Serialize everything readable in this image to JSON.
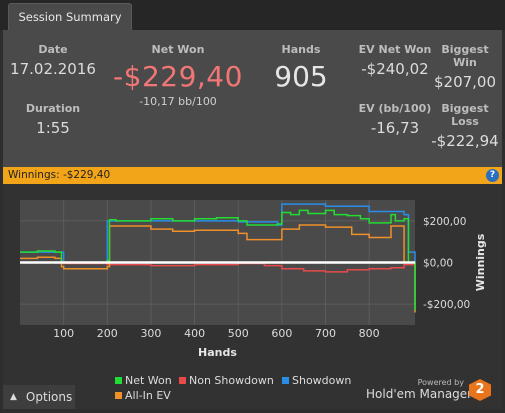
{
  "tab": {
    "label": "Session Summary"
  },
  "summary": {
    "date": {
      "label": "Date",
      "value": "17.02.2016"
    },
    "duration": {
      "label": "Duration",
      "value": "1:55"
    },
    "net_won": {
      "label": "Net Won",
      "value": "-$229,40",
      "sub": "-10,17 bb/100"
    },
    "hands": {
      "label": "Hands",
      "value": "905"
    },
    "ev_net_won": {
      "label": "EV Net Won",
      "value": "-$240,02"
    },
    "ev_bb": {
      "label": "EV (bb/100)",
      "value": "-16,73"
    },
    "biggest_win": {
      "label": "Biggest Win",
      "value": "$207,00"
    },
    "biggest_loss": {
      "label": "Biggest Loss",
      "value": "-$222,94"
    }
  },
  "winnings_bar": {
    "label": "Winnings: -$229,40",
    "help": "?"
  },
  "colors": {
    "net_won": "#22dd33",
    "non_showdown": "#e84a4a",
    "showdown": "#2a8de8",
    "all_in_ev": "#f0902a",
    "zero_line": "#ffffff",
    "accent": "#f3a51a"
  },
  "chart_data": {
    "type": "line",
    "xlabel": "Hands",
    "ylabel": "Winnings",
    "xlim": [
      0,
      905
    ],
    "ylim": [
      -300,
      300
    ],
    "x_ticks": [
      "100",
      "200",
      "300",
      "400",
      "500",
      "600",
      "700",
      "800"
    ],
    "y_ticks": [
      "$200,00",
      "$0,00",
      "-$200,00"
    ],
    "series": [
      {
        "name": "Net Won",
        "color": "#22dd33",
        "x": [
          0,
          40,
          80,
          95,
          100,
          200,
          205,
          220,
          300,
          350,
          400,
          450,
          500,
          520,
          590,
          600,
          620,
          640,
          660,
          700,
          720,
          750,
          780,
          800,
          850,
          860,
          880,
          890,
          905
        ],
        "y": [
          50,
          55,
          50,
          0,
          0,
          10,
          205,
          200,
          210,
          200,
          210,
          215,
          200,
          180,
          185,
          240,
          230,
          250,
          235,
          250,
          230,
          225,
          210,
          190,
          230,
          200,
          210,
          0,
          -229.4
        ]
      },
      {
        "name": "Non Showdown",
        "color": "#e84a4a",
        "x": [
          0,
          100,
          200,
          300,
          400,
          500,
          560,
          600,
          650,
          700,
          750,
          800,
          850,
          880,
          905
        ],
        "y": [
          0,
          -5,
          -10,
          -15,
          -10,
          -5,
          -15,
          -30,
          -40,
          -45,
          -35,
          -30,
          -25,
          -10,
          -30
        ]
      },
      {
        "name": "Showdown",
        "color": "#2a8de8",
        "x": [
          0,
          100,
          200,
          300,
          400,
          500,
          590,
          600,
          700,
          800,
          880,
          890,
          905
        ],
        "y": [
          50,
          0,
          200,
          200,
          200,
          195,
          180,
          280,
          270,
          245,
          230,
          50,
          -200
        ]
      },
      {
        "name": "All-In EV",
        "color": "#f0902a",
        "x": [
          0,
          40,
          80,
          95,
          100,
          200,
          205,
          300,
          350,
          400,
          500,
          520,
          600,
          640,
          700,
          760,
          800,
          850,
          880,
          905
        ],
        "y": [
          20,
          25,
          20,
          -20,
          -30,
          -20,
          175,
          160,
          150,
          155,
          140,
          110,
          160,
          180,
          170,
          135,
          120,
          175,
          0,
          -240.02
        ]
      }
    ],
    "legend": [
      "Net Won",
      "Non Showdown",
      "Showdown",
      "All-In EV"
    ],
    "legend_position": "bottom"
  },
  "footer": {
    "options_label": "Options",
    "options_icon": "chevron-up-icon",
    "powered_by": "Powered by",
    "brand": "Hold'em Manager",
    "brand_badge": "2"
  }
}
